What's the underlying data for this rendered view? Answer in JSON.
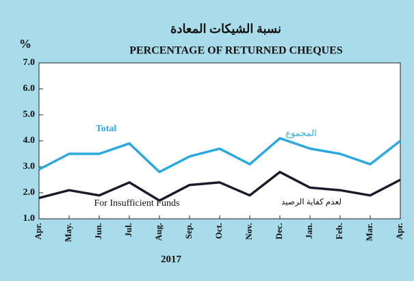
{
  "chart_data": {
    "type": "line",
    "title_ar": "نسبة الشيكات المعادة",
    "title": "PERCENTAGE OF RETURNED CHEQUES",
    "y_unit": "%",
    "x_label": "2017",
    "categories": [
      "Apr.",
      "May.",
      "Jun.",
      "Jul.",
      "Aug.",
      "Sep.",
      "Oct.",
      "Nov.",
      "Dec.",
      "Jan.",
      "Feb.",
      "Mar.",
      "Apr."
    ],
    "series": [
      {
        "name": "Total",
        "name_ar": "المجموع",
        "color": "#29a9e0",
        "values": [
          2.9,
          3.5,
          3.5,
          3.9,
          2.8,
          3.4,
          3.7,
          3.1,
          4.1,
          3.7,
          3.5,
          3.1,
          4.0
        ]
      },
      {
        "name": "For Insufficient Funds",
        "name_ar": "لعدم كفاية الرصيد",
        "color": "#1b1b2a",
        "values": [
          1.8,
          2.1,
          1.9,
          2.4,
          1.7,
          2.3,
          2.4,
          1.9,
          2.8,
          2.2,
          2.1,
          1.9,
          2.5
        ]
      }
    ],
    "ylim": [
      1,
      7
    ],
    "yticks": [
      {
        "value": 1,
        "label": "1.0"
      },
      {
        "value": 2,
        "label": "2.0"
      },
      {
        "value": 3,
        "label": "3.0"
      },
      {
        "value": 4,
        "label": "4.0"
      },
      {
        "value": 5,
        "label": "5.0"
      },
      {
        "value": 6,
        "label": "6.0"
      },
      {
        "value": 7,
        "label": "7.0"
      }
    ],
    "grid": false
  }
}
